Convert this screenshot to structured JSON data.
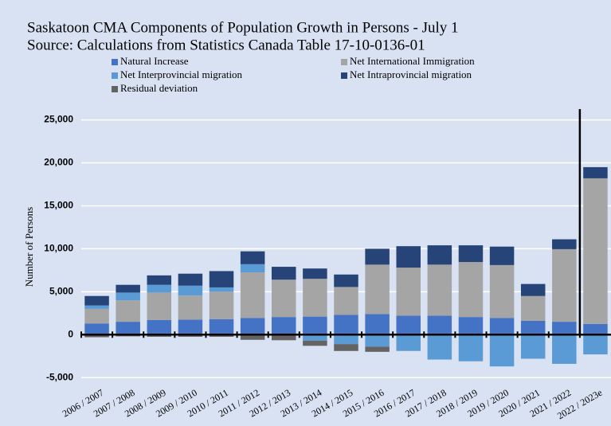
{
  "chart_data": {
    "type": "stacked-bar",
    "title": "Saskatoon CMA Components of Population Growth in Persons  - July 1",
    "subtitle": "Source: Calculations from Statistics Canada Table 17-10-0136-01",
    "y_label": "Number of Persons",
    "categories": [
      "2006 / 2007",
      "2007 / 2008",
      "2008 / 2009",
      "2009 / 2010",
      "2010 / 2011",
      "2011 / 2012",
      "2012 / 2013",
      "2013 / 2014",
      "2014 / 2015",
      "2015 / 2016",
      "2016 / 2017",
      "2017 / 2018",
      "2018 / 2019",
      "2019 / 2020",
      "2020 / 2021",
      "2021 / 2022",
      "2022 / 2023e"
    ],
    "series": [
      {
        "name": "Natural Increase",
        "color": "#4472c4",
        "values": [
          1300,
          1500,
          1700,
          1750,
          1800,
          1950,
          2050,
          2100,
          2300,
          2400,
          2200,
          2200,
          2050,
          1950,
          1600,
          1500,
          1250
        ]
      },
      {
        "name": "Net International Immigration",
        "color": "#a5a5a5",
        "values": [
          1700,
          2500,
          3200,
          2800,
          3200,
          5300,
          4350,
          4400,
          3250,
          5750,
          5600,
          5950,
          6400,
          6150,
          2900,
          8450,
          16950
        ]
      },
      {
        "name": "Net Interprovincial migration",
        "color": "#5b9bd5",
        "values": [
          400,
          900,
          900,
          1150,
          500,
          950,
          -100,
          -700,
          -1100,
          -1400,
          -1900,
          -2900,
          -3100,
          -3700,
          -2800,
          -3400,
          -2300
        ]
      },
      {
        "name": "Net Intraprovincial migration",
        "color": "#264478",
        "values": [
          1100,
          900,
          1100,
          1400,
          1900,
          1500,
          1500,
          1200,
          1450,
          1850,
          2500,
          2250,
          1950,
          2150,
          1400,
          1150,
          1300
        ]
      },
      {
        "name": "Residual deviation",
        "color": "#636363",
        "values": [
          -300,
          -200,
          -250,
          -250,
          -250,
          -600,
          -550,
          -600,
          -800,
          -600,
          0,
          0,
          0,
          0,
          0,
          0,
          0
        ]
      }
    ],
    "ylim": [
      -6000,
      27000
    ],
    "yticks": [
      {
        "value": -5000,
        "label": "-5,000"
      },
      0,
      {
        "value": 5000,
        "label": "5,000"
      },
      {
        "value": 10000,
        "label": "10,000"
      },
      {
        "value": 15000,
        "label": "15,000"
      },
      {
        "value": 20000,
        "label": "20,000"
      },
      {
        "value": 25000,
        "label": "25,000"
      }
    ],
    "grid": true
  }
}
